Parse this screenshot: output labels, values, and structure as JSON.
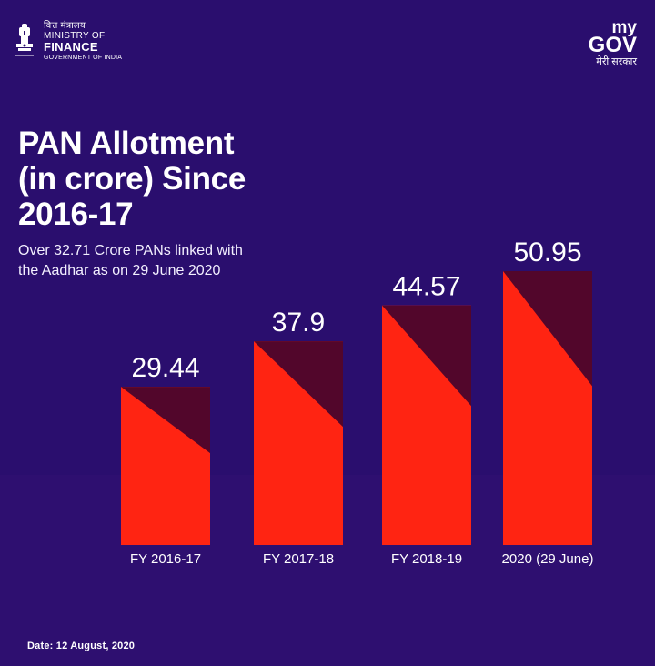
{
  "header": {
    "ministry_hindi": "वित्त मंत्रालय",
    "ministry_line1": "MINISTRY OF",
    "ministry_line2": "FINANCE",
    "ministry_line3": "GOVERNMENT OF INDIA",
    "mygov_my": "my",
    "mygov_gov": "GOV",
    "mygov_tagline": "मेरी सरकार"
  },
  "headline": {
    "title_line1": "PAN Allotment",
    "title_line2": "(in crore) Since",
    "title_line3": "2016-17",
    "subtitle_line1": "Over 32.71 Crore PANs linked with",
    "subtitle_line2": "the Aadhar as on 29 June 2020"
  },
  "footer": {
    "date": "Date: 12 August, 2020"
  },
  "colors": {
    "background": "#2a0e6e",
    "bar": "#ff2412",
    "bar_shade": "#52062b"
  },
  "chart_data": {
    "type": "bar",
    "categories": [
      "FY 2016-17",
      "FY 2017-18",
      "FY 2018-19",
      "2020 (29 June)"
    ],
    "values": [
      29.44,
      37.9,
      44.57,
      50.95
    ],
    "value_labels": [
      "29.44",
      "37.9",
      "44.57",
      "50.95"
    ],
    "title": "PAN Allotment (in crore) Since 2016-17",
    "xlabel": "",
    "ylabel": "",
    "grid": false,
    "legend": "none"
  }
}
